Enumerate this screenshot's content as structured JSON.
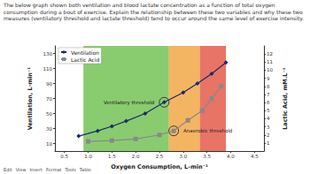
{
  "question": "The below graph shown both ventilation and blood lactate concentration as a function of total oxygen consumption during a bout of exercise. Explain the relationship between these two variables and why these two measures (ventilatory threshold and lactate threshold) tend to occur around the same level of exercise intensity.",
  "toolbar": [
    "Edit",
    "View",
    "Insert",
    "Format",
    "Tools",
    "Table"
  ],
  "chart_data": {
    "type": "line",
    "x_label": "Oxygen Consumption, L-min⁻¹",
    "y_label": "Ventilation, L·min⁻¹",
    "y2_label": "Lactic Acid, mM.L⁻¹",
    "xlim": [
      0.3,
      4.7
    ],
    "xticks": [
      0.5,
      {
        "value": 1,
        "label": "1.0"
      },
      1.5,
      {
        "value": 2,
        "label": "2.0"
      },
      2.5,
      {
        "value": 3,
        "label": "3.0"
      },
      3.5,
      {
        "value": 4,
        "label": "4.0"
      },
      4.5
    ],
    "ylim": [
      0,
      140
    ],
    "yticks": [
      10,
      30,
      50,
      70,
      90,
      110,
      130
    ],
    "y2lim": [
      0,
      13
    ],
    "y2ticks": [
      1,
      2,
      3,
      4,
      5,
      6,
      7,
      8,
      9,
      10,
      11,
      12
    ],
    "grid": false,
    "legend": "top-left",
    "bands": [
      {
        "from": 0.9,
        "to": 2.7,
        "color": "#6cbf4b"
      },
      {
        "from": 2.7,
        "to": 3.35,
        "color": "#f0a23a"
      },
      {
        "from": 3.35,
        "to": 3.9,
        "color": "#e2513f"
      }
    ],
    "series": [
      {
        "name": "Ventilation",
        "color": "#1a2a6c",
        "marker": "diamond",
        "line_style": "solid",
        "x": [
          0.8,
          1.2,
          1.5,
          1.8,
          2.2,
          2.6,
          3.0,
          3.3,
          3.6,
          3.9
        ],
        "values": [
          20,
          27,
          33,
          40,
          50,
          65,
          78,
          90,
          103,
          118
        ]
      },
      {
        "name": "Lactic Acid",
        "color": "#888888",
        "marker": "square",
        "line_style": "solid",
        "axis": "y2",
        "x": [
          1.0,
          1.5,
          2.0,
          2.5,
          2.8,
          3.1,
          3.4,
          3.6,
          3.8
        ],
        "values": [
          1.2,
          1.3,
          1.5,
          2.0,
          2.5,
          3.8,
          5.0,
          6.5,
          8.0
        ]
      }
    ],
    "annotations": [
      {
        "text": "Ventilatory threshold",
        "x": 2.6,
        "y": 65
      },
      {
        "text": "Anaerobic threshold",
        "x": 2.8,
        "y": 2.5,
        "axis": "y2"
      }
    ]
  }
}
